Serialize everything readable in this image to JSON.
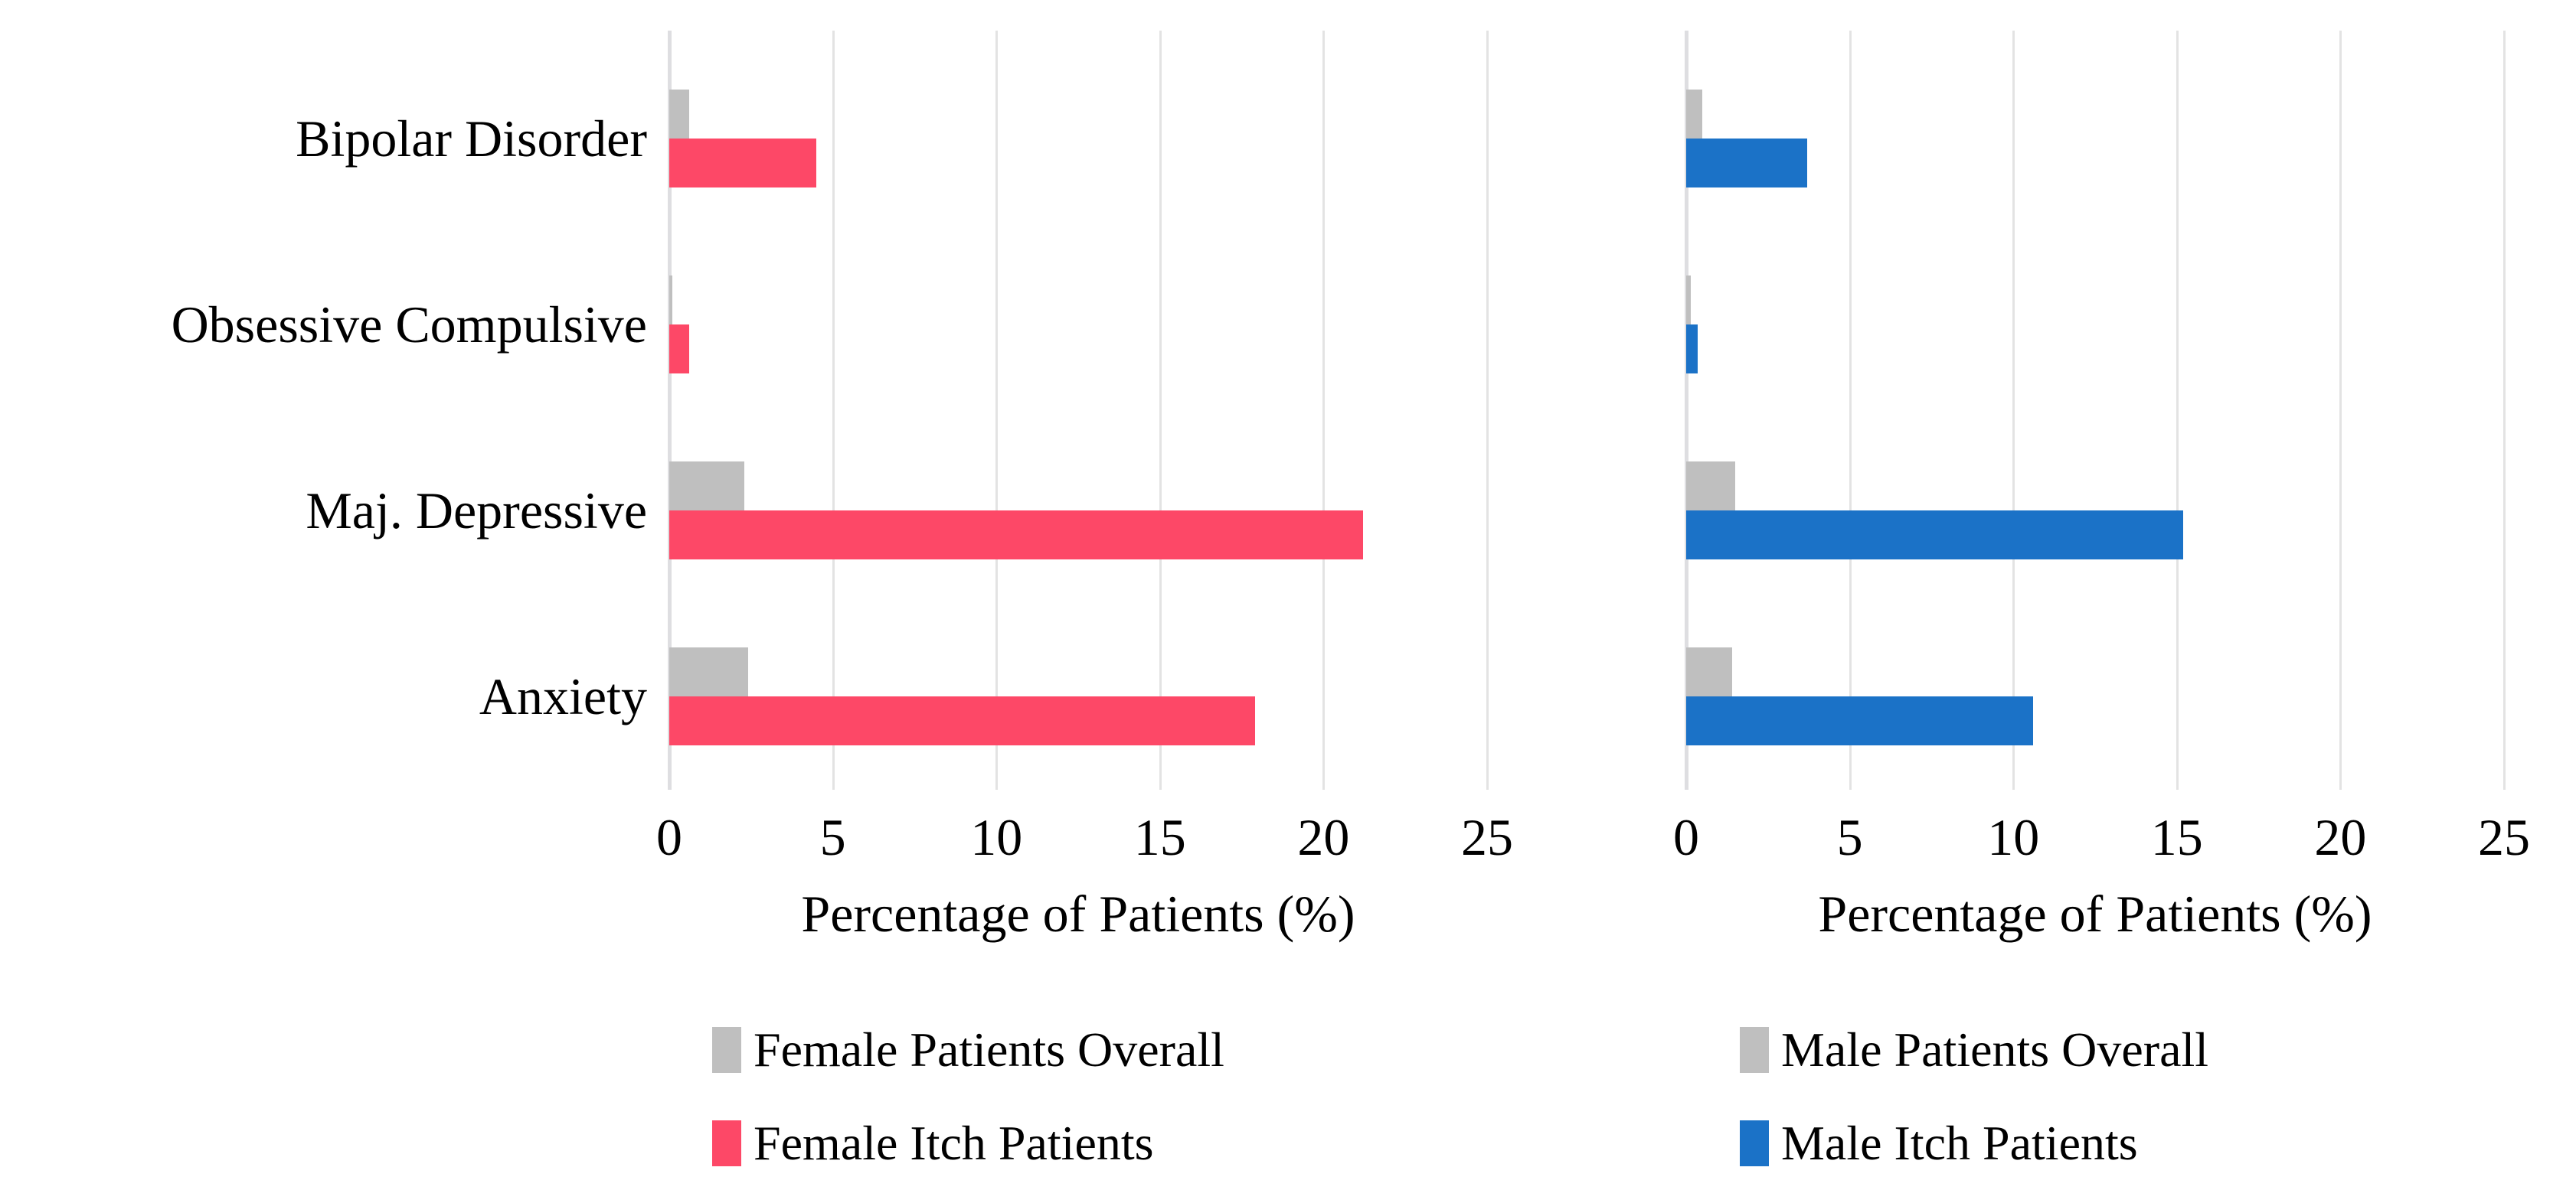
{
  "figure": {
    "background": "#FFFFFF",
    "text_color": "#000000",
    "gridline_color": "#E3E3E3",
    "axis_line_color": "#DEDEE1"
  },
  "categories": [
    "Bipolar Disorder",
    "Obsessive Compulsive",
    "Maj. Depressive",
    "Anxiety"
  ],
  "chart_data": [
    {
      "type": "bar",
      "orientation": "horizontal",
      "title": "",
      "xlabel": "Percentage of Patients (%)",
      "ylabel": "",
      "categories": [
        "Bipolar Disorder",
        "Obsessive Compulsive",
        "Maj. Depressive",
        "Anxiety"
      ],
      "xlim": [
        0,
        25
      ],
      "xticks": [
        "0",
        "5",
        "10",
        "15",
        "20",
        "25"
      ],
      "grid": true,
      "legend_position": "bottom",
      "series": [
        {
          "name": "Female Patients Overall",
          "color": "#BFBFBF",
          "values": [
            0.6,
            0.1,
            2.3,
            2.4
          ]
        },
        {
          "name": "Female Itch Patients",
          "color": "#FD4867",
          "values": [
            4.5,
            0.6,
            21.2,
            17.9
          ]
        }
      ]
    },
    {
      "type": "bar",
      "orientation": "horizontal",
      "title": "",
      "xlabel": "Percentage of Patients (%)",
      "ylabel": "",
      "categories": [
        "Bipolar Disorder",
        "Obsessive Compulsive",
        "Maj. Depressive",
        "Anxiety"
      ],
      "xlim": [
        0,
        25
      ],
      "xticks": [
        "0",
        "5",
        "10",
        "15",
        "20",
        "25"
      ],
      "grid": true,
      "legend_position": "bottom",
      "series": [
        {
          "name": "Male Patients Overall",
          "color": "#BFBFBF",
          "values": [
            0.5,
            0.15,
            1.5,
            1.4
          ]
        },
        {
          "name": "Male Itch Patients",
          "color": "#1B72C7",
          "values": [
            3.7,
            0.35,
            15.2,
            10.6
          ]
        }
      ]
    }
  ]
}
